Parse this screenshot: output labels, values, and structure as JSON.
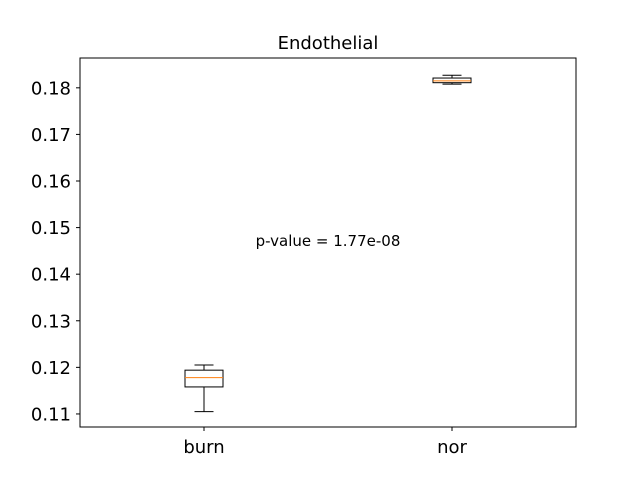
{
  "chart_data": {
    "type": "box",
    "title": "Endothelial",
    "xlabel": "",
    "ylabel": "",
    "ylim": [
      0.1072,
      0.1864
    ],
    "yticks": [
      0.11,
      0.12,
      0.13,
      0.14,
      0.15,
      0.16,
      0.17,
      0.18
    ],
    "ytick_labels": [
      "0.11",
      "0.12",
      "0.13",
      "0.14",
      "0.15",
      "0.16",
      "0.17",
      "0.18"
    ],
    "categories": [
      "burn",
      "nor"
    ],
    "boxes": [
      {
        "category": "burn",
        "whisker_low": 0.1105,
        "q1": 0.1158,
        "median": 0.1178,
        "q3": 0.1194,
        "whisker_high": 0.1205
      },
      {
        "category": "nor",
        "whisker_low": 0.1808,
        "q1": 0.1811,
        "median": 0.1815,
        "q3": 0.1821,
        "whisker_high": 0.1827
      }
    ],
    "annotation": {
      "text": "p-value = 1.77e-08",
      "x": 1.5,
      "y": 0.1472
    },
    "grid": false,
    "colors": {
      "box": "#000000",
      "median": "#ff7f0e",
      "axes": "#000000"
    }
  }
}
